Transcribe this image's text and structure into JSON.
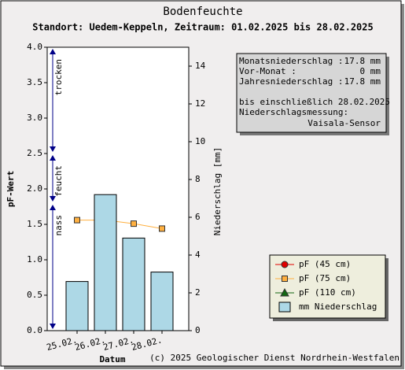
{
  "chart_data": {
    "type": "bar",
    "title": "Bodenfeuchte",
    "subtitle": "Standort: Uedem-Keppeln, Zeitraum: 01.02.2025 bis 28.02.2025",
    "xlabel": "Datum",
    "ylabel": "pF-Wert",
    "y2label": "Niederschlag [mm]",
    "categories": [
      "25.02.",
      "26.02.",
      "27.02.",
      "28.02."
    ],
    "ylim": [
      0,
      4
    ],
    "yticks": [
      {
        "value": 0,
        "label": "0.0"
      },
      {
        "value": 0.5,
        "label": "0.5"
      },
      {
        "value": 1,
        "label": "1.0"
      },
      {
        "value": 1.5,
        "label": "1.5"
      },
      {
        "value": 2,
        "label": "2.0"
      },
      {
        "value": 2.5,
        "label": "2.5"
      },
      {
        "value": 3,
        "label": "3.0"
      },
      {
        "value": 3.5,
        "label": "3.5"
      },
      {
        "value": 4,
        "label": "4.0"
      }
    ],
    "y2lim": [
      0,
      15
    ],
    "y2ticks": [
      0,
      2,
      4,
      6,
      8,
      10,
      12,
      14
    ],
    "zones": [
      {
        "label": "trocken",
        "from": 2.5,
        "to": 4
      },
      {
        "label": "feucht",
        "from": 1.8,
        "to": 2.5
      },
      {
        "label": "nass",
        "from": 0,
        "to": 1.8
      }
    ],
    "series": [
      {
        "name": "pF (45 cm)",
        "type": "line",
        "marker": "circle",
        "color": "#e00000",
        "values": [
          null,
          null,
          null,
          null
        ]
      },
      {
        "name": "pF (75 cm)",
        "type": "line",
        "marker": "square",
        "color": "#ffb040",
        "values": [
          1.56,
          1.56,
          1.51,
          1.44
        ]
      },
      {
        "name": "pF (110 cm)",
        "type": "line",
        "marker": "triangle",
        "color": "#116611",
        "values": [
          null,
          null,
          null,
          null
        ]
      },
      {
        "name": "mm  Niederschlag",
        "type": "bar",
        "axis": "y2",
        "color": "#add8e6",
        "values": [
          2.6,
          7.2,
          4.9,
          3.1
        ]
      }
    ],
    "info_totals": [
      [
        "Monatsniederschlag :",
        "17.8 mm"
      ],
      [
        "Vor-Monat :",
        "0 mm"
      ],
      [
        "Jahresniederschlag :",
        "17.8 mm"
      ]
    ],
    "info_notes": [
      "bis einschließlich 28.02.2025",
      "Niederschlagsmessung:"
    ],
    "info_sensor": "Vaisala-Sensor",
    "copyright": "(c) 2025 Geologischer Dienst Nordrhein-Westfalen"
  }
}
